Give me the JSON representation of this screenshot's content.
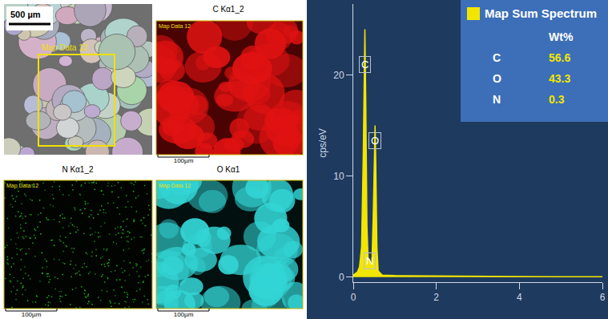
{
  "panels": {
    "sem": {
      "scale_bar": "500 µm",
      "region_label": "Map Data 12"
    },
    "maps": [
      {
        "element_title": "C Kα1_2",
        "label": "Map Data 12",
        "scale_bar": "100µm",
        "color": "#e01212"
      },
      {
        "element_title": "N Kα1_2",
        "label": "Map Data 12",
        "scale_bar": "100µm",
        "color": "#22cc22"
      },
      {
        "element_title": "O Kα1",
        "label": "Map Data 12",
        "scale_bar": "100µm",
        "color": "#33d4d4"
      }
    ]
  },
  "chart_data": {
    "type": "area",
    "y_label": "cps/eV",
    "x": [
      0,
      0.1,
      0.15,
      0.2,
      0.24,
      0.27,
      0.28,
      0.3,
      0.33,
      0.36,
      0.39,
      0.42,
      0.45,
      0.48,
      0.51,
      0.525,
      0.54,
      0.57,
      0.6,
      0.7,
      1,
      2,
      3,
      4,
      5,
      6
    ],
    "values": [
      0.2,
      0.5,
      1,
      3,
      12,
      22,
      24.5,
      18,
      5,
      1.5,
      1.8,
      1.2,
      1.5,
      6,
      14,
      15,
      12,
      3,
      0.6,
      0.2,
      0.15,
      0.1,
      0.05,
      0.05,
      0.03,
      0.03
    ],
    "color": "#f2e600",
    "xlim": [
      0,
      6
    ],
    "xticks": [
      0,
      2,
      4,
      6
    ],
    "ylim": [
      -0.5,
      27
    ],
    "yticks": [
      0,
      10,
      20
    ],
    "grid": false,
    "annotations": [
      {
        "text": "C",
        "x": 0.28,
        "y": 21
      },
      {
        "text": "O",
        "x": 0.525,
        "y": 13.5
      },
      {
        "text": "N",
        "x": 0.39,
        "y": 1.6
      }
    ],
    "composition": {
      "title": "Map Sum Spectrum",
      "header": "Wt%",
      "elements": [
        "C",
        "O",
        "N"
      ],
      "values": [
        56.6,
        43.3,
        0.3
      ]
    }
  }
}
